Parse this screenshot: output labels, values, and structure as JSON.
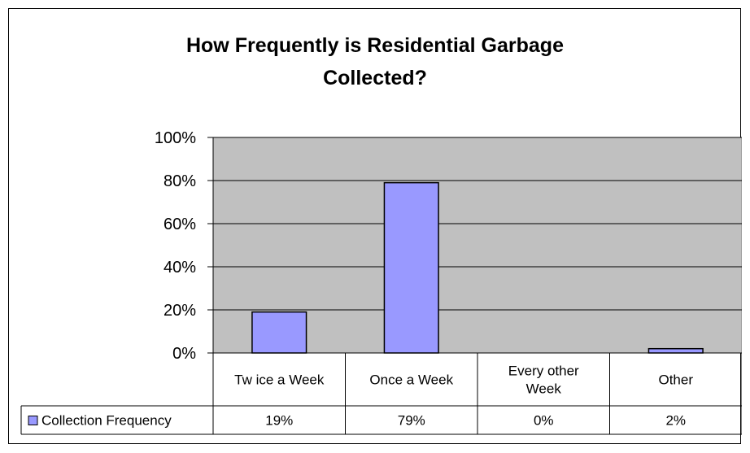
{
  "chart_data": {
    "type": "bar",
    "title_lines": [
      "How Frequently is Residential Garbage",
      "Collected?"
    ],
    "categories": [
      [
        "Tw ice a Week"
      ],
      [
        "Once a Week"
      ],
      [
        "Every other",
        "Week"
      ],
      [
        "Other"
      ]
    ],
    "series": [
      {
        "name": "Collection Frequency",
        "values": [
          19,
          79,
          0,
          2
        ],
        "value_labels": [
          "19%",
          "79%",
          "0%",
          "2%"
        ],
        "color": "#9999ff"
      }
    ],
    "y_ticks": [
      "0%",
      "20%",
      "40%",
      "60%",
      "80%",
      "100%"
    ],
    "ylim": [
      0,
      100
    ],
    "plot_background": "#c0c0c0",
    "grid": true,
    "legend": "data-table"
  }
}
